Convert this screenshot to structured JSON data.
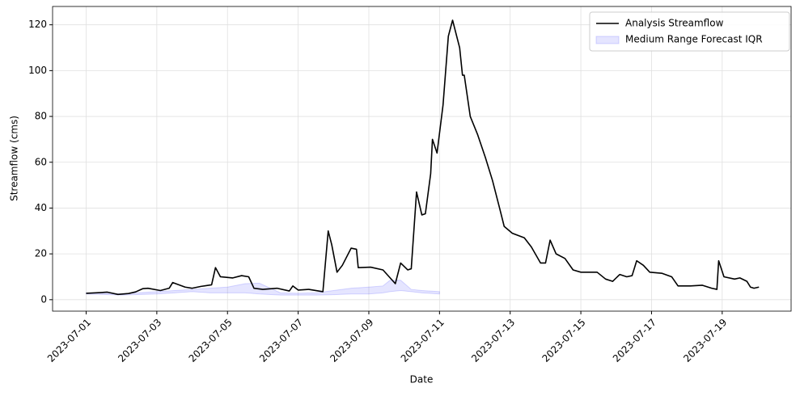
{
  "chart_data": {
    "type": "line",
    "x_label": "Date",
    "y_label": "Streamflow (cms)",
    "x": [
      0,
      0.4,
      0.6,
      0.9,
      1.2,
      1.4,
      1.6,
      1.75,
      2.1,
      2.35,
      2.45,
      2.8,
      3.0,
      3.25,
      3.55,
      3.66,
      3.8,
      4.15,
      4.4,
      4.6,
      4.75,
      5.0,
      5.4,
      5.75,
      5.85,
      6.0,
      6.3,
      6.7,
      6.85,
      6.95,
      7.1,
      7.25,
      7.5,
      7.65,
      7.7,
      8.05,
      8.4,
      8.75,
      8.9,
      9.1,
      9.2,
      9.35,
      9.5,
      9.6,
      9.75,
      9.8,
      9.93,
      10.1,
      10.25,
      10.37,
      10.57,
      10.65,
      10.7,
      10.87,
      11.08,
      11.3,
      11.5,
      11.7,
      11.83,
      12.06,
      12.4,
      12.6,
      12.86,
      13.0,
      13.13,
      13.3,
      13.55,
      13.78,
      14.0,
      14.46,
      14.7,
      14.9,
      15.1,
      15.3,
      15.45,
      15.58,
      15.77,
      15.95,
      16.3,
      16.57,
      16.75,
      17.1,
      17.44,
      17.7,
      17.85,
      17.9,
      18.05,
      18.35,
      18.5,
      18.7,
      18.8,
      18.9,
      19.04
    ],
    "series": [
      {
        "name": "Analysis Streamflow",
        "color": "#000000",
        "values": [
          2.8,
          3.1,
          3.3,
          2.3,
          2.7,
          3.4,
          4.8,
          5.0,
          4.0,
          5.0,
          7.5,
          5.5,
          5.0,
          5.8,
          6.5,
          14,
          10,
          9.5,
          10.5,
          10,
          5,
          4.5,
          5,
          3.8,
          6,
          4.2,
          4.5,
          3.5,
          30,
          24,
          12,
          15,
          22.5,
          22,
          14,
          14.2,
          13,
          7,
          16,
          13,
          13.5,
          47,
          37,
          37.5,
          55,
          70,
          64,
          85,
          115,
          122,
          110,
          98,
          98,
          80,
          72,
          62,
          52,
          40,
          32,
          29,
          27,
          23,
          16,
          16,
          26,
          20,
          18,
          13,
          12,
          12,
          9,
          8,
          11,
          10,
          10.5,
          17,
          15,
          12,
          11.5,
          10,
          6,
          6,
          6.3,
          5,
          4.5,
          17,
          10,
          9,
          9.5,
          8,
          5.5,
          5,
          5.5
        ]
      },
      {
        "name": "Medium Range Forecast IQR",
        "color": "#0000ff",
        "kind": "band",
        "x": [
          0,
          1,
          2,
          2.5,
          3,
          3.5,
          4,
          4.5,
          4.9,
          5.5,
          6,
          6.5,
          7,
          7.5,
          8,
          8.4,
          8.6,
          8.9,
          9.2,
          9.5,
          10
        ],
        "lower": [
          2.5,
          2,
          2.5,
          3,
          3.5,
          3,
          3,
          3,
          2.5,
          2,
          2,
          2,
          2.2,
          2.5,
          2.5,
          3,
          3.5,
          4,
          3.5,
          3,
          2.5
        ],
        "upper": [
          3,
          2.6,
          3.5,
          4,
          4.5,
          5,
          5.5,
          7,
          7.2,
          3,
          2.8,
          3,
          4,
          5,
          5.5,
          6,
          8.5,
          8.5,
          4.5,
          4,
          3.5
        ]
      }
    ],
    "xlim": [
      -0.95,
      19.95
    ],
    "ylim": [
      -5,
      128
    ],
    "xticks": [
      {
        "value": 0,
        "label": "2023-07-01"
      },
      {
        "value": 2,
        "label": "2023-07-03"
      },
      {
        "value": 4,
        "label": "2023-07-05"
      },
      {
        "value": 6,
        "label": "2023-07-07"
      },
      {
        "value": 8,
        "label": "2023-07-09"
      },
      {
        "value": 10,
        "label": "2023-07-11"
      },
      {
        "value": 12,
        "label": "2023-07-13"
      },
      {
        "value": 14,
        "label": "2023-07-15"
      },
      {
        "value": 16,
        "label": "2023-07-17"
      },
      {
        "value": 18,
        "label": "2023-07-19"
      }
    ],
    "yticks": [
      0,
      20,
      40,
      60,
      80,
      100,
      120
    ],
    "grid": true,
    "legend": "upper right"
  }
}
